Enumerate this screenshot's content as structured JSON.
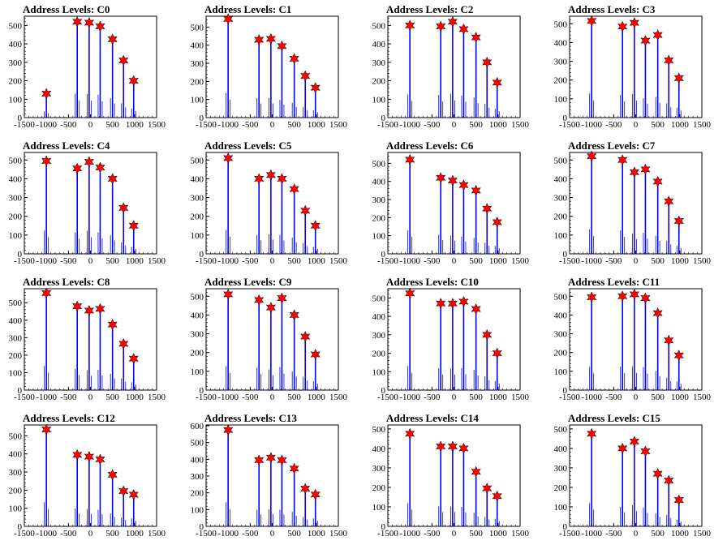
{
  "figure": {
    "colors": {
      "bar": "#0000ff",
      "marker": "#ff0000",
      "marker_stroke": "#000000",
      "axis": "#000000"
    }
  },
  "chart_data": [
    {
      "type": "bar",
      "title": "Address Levels: C0",
      "xlim": [
        -1500,
        1500
      ],
      "ylim": [
        0,
        550
      ],
      "xticks": [
        -1500,
        -1000,
        -500,
        0,
        500,
        1000,
        1500
      ],
      "yticks": [
        0,
        100,
        200,
        300,
        400,
        500
      ],
      "peaks": [
        {
          "x": -1000,
          "y": 130
        },
        {
          "x": -300,
          "y": 520
        },
        {
          "x": -30,
          "y": 515
        },
        {
          "x": 220,
          "y": 495
        },
        {
          "x": 500,
          "y": 425
        },
        {
          "x": 750,
          "y": 310
        },
        {
          "x": 980,
          "y": 200
        }
      ]
    },
    {
      "type": "bar",
      "title": "Address Levels: C1",
      "xlim": [
        -1500,
        1500
      ],
      "ylim": [
        0,
        560
      ],
      "xticks": [
        -1500,
        -1000,
        -500,
        0,
        500,
        1000,
        1500
      ],
      "yticks": [
        0,
        100,
        200,
        300,
        400,
        500
      ],
      "peaks": [
        {
          "x": -1000,
          "y": 545
        },
        {
          "x": -300,
          "y": 430
        },
        {
          "x": -30,
          "y": 435
        },
        {
          "x": 220,
          "y": 395
        },
        {
          "x": 500,
          "y": 325
        },
        {
          "x": 750,
          "y": 230
        },
        {
          "x": 980,
          "y": 165
        }
      ]
    },
    {
      "type": "bar",
      "title": "Address Levels: C2",
      "xlim": [
        -1500,
        1500
      ],
      "ylim": [
        0,
        550
      ],
      "xticks": [
        -1500,
        -1000,
        -500,
        0,
        500,
        1000,
        1500
      ],
      "yticks": [
        0,
        100,
        200,
        300,
        400,
        500
      ],
      "peaks": [
        {
          "x": -1000,
          "y": 500
        },
        {
          "x": -300,
          "y": 495
        },
        {
          "x": -30,
          "y": 520
        },
        {
          "x": 220,
          "y": 480
        },
        {
          "x": 500,
          "y": 435
        },
        {
          "x": 750,
          "y": 300
        },
        {
          "x": 980,
          "y": 190
        }
      ]
    },
    {
      "type": "bar",
      "title": "Address Levels: C3",
      "xlim": [
        -1500,
        1500
      ],
      "ylim": [
        0,
        540
      ],
      "xticks": [
        -1500,
        -1000,
        -500,
        0,
        500,
        1000,
        1500
      ],
      "yticks": [
        0,
        100,
        200,
        300,
        400,
        500
      ],
      "peaks": [
        {
          "x": -1000,
          "y": 515
        },
        {
          "x": -300,
          "y": 485
        },
        {
          "x": -30,
          "y": 505
        },
        {
          "x": 220,
          "y": 410
        },
        {
          "x": 500,
          "y": 440
        },
        {
          "x": 750,
          "y": 305
        },
        {
          "x": 980,
          "y": 210
        }
      ]
    },
    {
      "type": "bar",
      "title": "Address Levels: C4",
      "xlim": [
        -1500,
        1500
      ],
      "ylim": [
        0,
        540
      ],
      "xticks": [
        -1500,
        -1000,
        -500,
        0,
        500,
        1000,
        1500
      ],
      "yticks": [
        0,
        100,
        200,
        300,
        400,
        500
      ],
      "peaks": [
        {
          "x": -1000,
          "y": 495
        },
        {
          "x": -300,
          "y": 455
        },
        {
          "x": -30,
          "y": 490
        },
        {
          "x": 220,
          "y": 460
        },
        {
          "x": 500,
          "y": 400
        },
        {
          "x": 750,
          "y": 245
        },
        {
          "x": 980,
          "y": 150
        }
      ]
    },
    {
      "type": "bar",
      "title": "Address Levels: C5",
      "xlim": [
        -1500,
        1500
      ],
      "ylim": [
        0,
        540
      ],
      "xticks": [
        -1500,
        -1000,
        -500,
        0,
        500,
        1000,
        1500
      ],
      "yticks": [
        0,
        100,
        200,
        300,
        400,
        500
      ],
      "peaks": [
        {
          "x": -1000,
          "y": 510
        },
        {
          "x": -300,
          "y": 400
        },
        {
          "x": -30,
          "y": 420
        },
        {
          "x": 220,
          "y": 400
        },
        {
          "x": 500,
          "y": 345
        },
        {
          "x": 750,
          "y": 230
        },
        {
          "x": 980,
          "y": 150
        }
      ]
    },
    {
      "type": "bar",
      "title": "Address Levels: C6",
      "xlim": [
        -1500,
        1500
      ],
      "ylim": [
        0,
        560
      ],
      "xticks": [
        -1500,
        -1000,
        -500,
        0,
        500,
        1000,
        1500
      ],
      "yticks": [
        0,
        100,
        200,
        300,
        400,
        500
      ],
      "peaks": [
        {
          "x": -1000,
          "y": 520
        },
        {
          "x": -300,
          "y": 420
        },
        {
          "x": -30,
          "y": 405
        },
        {
          "x": 220,
          "y": 380
        },
        {
          "x": 500,
          "y": 350
        },
        {
          "x": 750,
          "y": 250
        },
        {
          "x": 980,
          "y": 175
        }
      ]
    },
    {
      "type": "bar",
      "title": "Address Levels: C7",
      "xlim": [
        -1500,
        1500
      ],
      "ylim": [
        0,
        540
      ],
      "xticks": [
        -1500,
        -1000,
        -500,
        0,
        500,
        1000,
        1500
      ],
      "yticks": [
        0,
        100,
        200,
        300,
        400,
        500
      ],
      "peaks": [
        {
          "x": -1000,
          "y": 520
        },
        {
          "x": -300,
          "y": 500
        },
        {
          "x": -30,
          "y": 435
        },
        {
          "x": 220,
          "y": 450
        },
        {
          "x": 500,
          "y": 385
        },
        {
          "x": 750,
          "y": 280
        },
        {
          "x": 980,
          "y": 175
        }
      ]
    },
    {
      "type": "bar",
      "title": "Address Levels: C8",
      "xlim": [
        -1500,
        1500
      ],
      "ylim": [
        0,
        580
      ],
      "xticks": [
        -1500,
        -1000,
        -500,
        0,
        500,
        1000,
        1500
      ],
      "yticks": [
        0,
        100,
        200,
        300,
        400,
        500
      ],
      "peaks": [
        {
          "x": -1000,
          "y": 555
        },
        {
          "x": -300,
          "y": 480
        },
        {
          "x": -30,
          "y": 455
        },
        {
          "x": 220,
          "y": 465
        },
        {
          "x": 500,
          "y": 375
        },
        {
          "x": 750,
          "y": 265
        },
        {
          "x": 980,
          "y": 180
        }
      ]
    },
    {
      "type": "bar",
      "title": "Address Levels: C9",
      "xlim": [
        -1500,
        1500
      ],
      "ylim": [
        0,
        540
      ],
      "xticks": [
        -1500,
        -1000,
        -500,
        0,
        500,
        1000,
        1500
      ],
      "yticks": [
        0,
        100,
        200,
        300,
        400,
        500
      ],
      "peaks": [
        {
          "x": -1000,
          "y": 510
        },
        {
          "x": -300,
          "y": 480
        },
        {
          "x": -30,
          "y": 440
        },
        {
          "x": 220,
          "y": 490
        },
        {
          "x": 500,
          "y": 400
        },
        {
          "x": 750,
          "y": 285
        },
        {
          "x": 980,
          "y": 190
        }
      ]
    },
    {
      "type": "bar",
      "title": "Address Levels: C10",
      "xlim": [
        -1500,
        1500
      ],
      "ylim": [
        0,
        550
      ],
      "xticks": [
        -1500,
        -1000,
        -500,
        0,
        500,
        1000,
        1500
      ],
      "yticks": [
        0,
        100,
        200,
        300,
        400,
        500
      ],
      "peaks": [
        {
          "x": -1000,
          "y": 525
        },
        {
          "x": -300,
          "y": 470
        },
        {
          "x": -30,
          "y": 470
        },
        {
          "x": 220,
          "y": 480
        },
        {
          "x": 500,
          "y": 440
        },
        {
          "x": 750,
          "y": 300
        },
        {
          "x": 980,
          "y": 200
        }
      ]
    },
    {
      "type": "bar",
      "title": "Address Levels: C11",
      "xlim": [
        -1500,
        1500
      ],
      "ylim": [
        0,
        540
      ],
      "xticks": [
        -1500,
        -1000,
        -500,
        0,
        500,
        1000,
        1500
      ],
      "yticks": [
        0,
        100,
        200,
        300,
        400,
        500
      ],
      "peaks": [
        {
          "x": -1000,
          "y": 495
        },
        {
          "x": -300,
          "y": 500
        },
        {
          "x": -30,
          "y": 510
        },
        {
          "x": 220,
          "y": 490
        },
        {
          "x": 500,
          "y": 410
        },
        {
          "x": 750,
          "y": 265
        },
        {
          "x": 980,
          "y": 185
        }
      ]
    },
    {
      "type": "bar",
      "title": "Address Levels: C12",
      "xlim": [
        -1500,
        1500
      ],
      "ylim": [
        0,
        560
      ],
      "xticks": [
        -1500,
        -1000,
        -500,
        0,
        500,
        1000,
        1500
      ],
      "yticks": [
        0,
        100,
        200,
        300,
        400,
        500
      ],
      "peaks": [
        {
          "x": -1000,
          "y": 535
        },
        {
          "x": -300,
          "y": 395
        },
        {
          "x": -30,
          "y": 385
        },
        {
          "x": 220,
          "y": 370
        },
        {
          "x": 500,
          "y": 285
        },
        {
          "x": 750,
          "y": 195
        },
        {
          "x": 980,
          "y": 175
        }
      ]
    },
    {
      "type": "bar",
      "title": "Address Levels: C13",
      "xlim": [
        -1500,
        1500
      ],
      "ylim": [
        0,
        605
      ],
      "xticks": [
        -1500,
        -1000,
        -500,
        0,
        500,
        1000,
        1500
      ],
      "yticks": [
        0,
        100,
        200,
        300,
        400,
        500,
        600
      ],
      "peaks": [
        {
          "x": -1000,
          "y": 575
        },
        {
          "x": -300,
          "y": 395
        },
        {
          "x": -30,
          "y": 410
        },
        {
          "x": 220,
          "y": 395
        },
        {
          "x": 500,
          "y": 345
        },
        {
          "x": 750,
          "y": 225
        },
        {
          "x": 980,
          "y": 190
        }
      ]
    },
    {
      "type": "bar",
      "title": "Address Levels: C14",
      "xlim": [
        -1500,
        1500
      ],
      "ylim": [
        0,
        520
      ],
      "xticks": [
        -1500,
        -1000,
        -500,
        0,
        500,
        1000,
        1500
      ],
      "yticks": [
        0,
        100,
        200,
        300,
        400,
        500
      ],
      "peaks": [
        {
          "x": -1000,
          "y": 475
        },
        {
          "x": -300,
          "y": 410
        },
        {
          "x": -30,
          "y": 410
        },
        {
          "x": 220,
          "y": 400
        },
        {
          "x": 500,
          "y": 280
        },
        {
          "x": 750,
          "y": 195
        },
        {
          "x": 980,
          "y": 155
        }
      ]
    },
    {
      "type": "bar",
      "title": "Address Levels: C15",
      "xlim": [
        -1500,
        1500
      ],
      "ylim": [
        0,
        520
      ],
      "xticks": [
        -1500,
        -1000,
        -500,
        0,
        500,
        1000,
        1500
      ],
      "yticks": [
        0,
        100,
        200,
        300,
        400,
        500
      ],
      "peaks": [
        {
          "x": -1000,
          "y": 475
        },
        {
          "x": -300,
          "y": 400
        },
        {
          "x": -30,
          "y": 435
        },
        {
          "x": 220,
          "y": 385
        },
        {
          "x": 500,
          "y": 270
        },
        {
          "x": 750,
          "y": 235
        },
        {
          "x": 980,
          "y": 135
        }
      ]
    }
  ]
}
